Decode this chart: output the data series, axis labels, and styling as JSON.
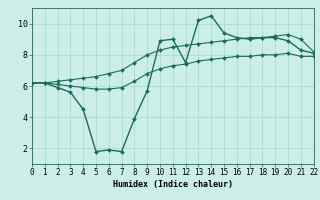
{
  "xlabel": "Humidex (Indice chaleur)",
  "bg_color": "#cceee8",
  "line_color": "#1a6b5a",
  "grid_color": "#aaddcc",
  "x_hours": [
    0,
    1,
    2,
    3,
    4,
    5,
    6,
    7,
    8,
    9,
    10,
    11,
    12,
    13,
    14,
    15,
    16,
    17,
    18,
    19,
    20,
    21,
    22
  ],
  "line_main": [
    6.2,
    6.2,
    5.9,
    5.6,
    4.5,
    1.8,
    1.9,
    1.8,
    3.9,
    5.7,
    8.9,
    9.0,
    7.5,
    10.2,
    10.5,
    9.4,
    9.1,
    9.0,
    9.1,
    9.1,
    8.9,
    8.3,
    8.1
  ],
  "line_upper": [
    6.2,
    6.2,
    6.3,
    6.4,
    6.5,
    6.6,
    6.8,
    7.0,
    7.5,
    8.0,
    8.3,
    8.5,
    8.6,
    8.7,
    8.8,
    8.9,
    9.0,
    9.1,
    9.1,
    9.2,
    9.3,
    9.0,
    8.2
  ],
  "line_lower": [
    6.2,
    6.2,
    6.1,
    6.0,
    5.9,
    5.8,
    5.8,
    5.9,
    6.3,
    6.8,
    7.1,
    7.3,
    7.4,
    7.6,
    7.7,
    7.8,
    7.9,
    7.9,
    8.0,
    8.0,
    8.1,
    7.9,
    7.9
  ],
  "ylim": [
    1,
    11
  ],
  "xlim": [
    0,
    22
  ],
  "yticks": [
    2,
    4,
    6,
    8,
    10
  ],
  "xticks": [
    0,
    1,
    2,
    3,
    4,
    5,
    6,
    7,
    8,
    9,
    10,
    11,
    12,
    13,
    14,
    15,
    16,
    17,
    18,
    19,
    20,
    21,
    22
  ],
  "xlabel_fontsize": 6,
  "tick_fontsize": 5.5,
  "linewidth_main": 1.0,
  "linewidth_side": 0.8,
  "markersize": 2.0
}
